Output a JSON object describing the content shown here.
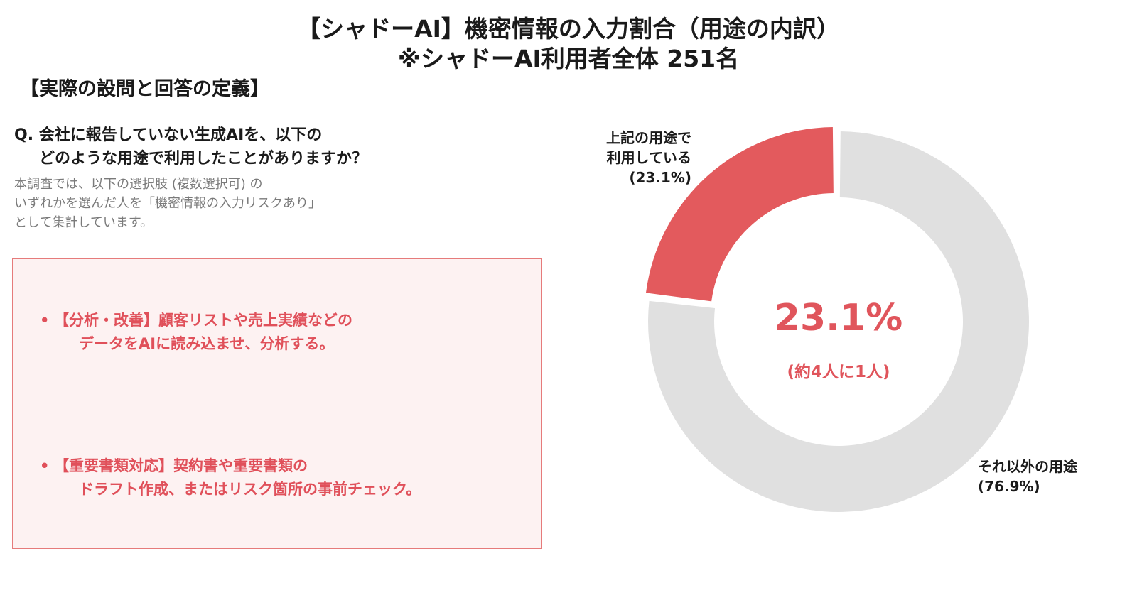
{
  "title": {
    "line1": "【シャドーAI】機密情報の入力割合（用途の内訳）",
    "line2": "※シャドーAI利用者全体 251名"
  },
  "definition": {
    "heading": "【実際の設問と回答の定義】",
    "question_line1": "Q. 会社に報告していない生成AIを、以下の",
    "question_line2": "どのような用途で利用したことがありますか？",
    "note_line1": "本調査では、以下の選択肢 (複数選択可) の",
    "note_line2": "いずれかを選んだ人を「機密情報の入力リスクあり」",
    "note_line3": "として集計しています。"
  },
  "options": [
    {
      "bullet": "•",
      "line1": "【分析・改善】顧客リストや売上実績などの",
      "line2": "データをAIに読み込ませ、分析する。"
    },
    {
      "bullet": "•",
      "line1": "【重要書類対応】契約書や重要書類の",
      "line2": "ドラフト作成、またはリスク箇所の事前チェック。"
    }
  ],
  "chart_data": {
    "type": "pie",
    "donut": true,
    "total_respondents": 251,
    "slices": [
      {
        "label_line1": "上記の用途で",
        "label_line2": "利用している",
        "label_line3": "(23.1%)",
        "value": 23.1,
        "color": "#e35a5d",
        "exploded": true
      },
      {
        "label_line1": "それ以外の用途",
        "label_line2": "(76.9%)",
        "value": 76.9,
        "color": "#e0e0e0",
        "exploded": false
      }
    ],
    "center_value": "23.1%",
    "center_subtext": "(約4人に1人)"
  }
}
